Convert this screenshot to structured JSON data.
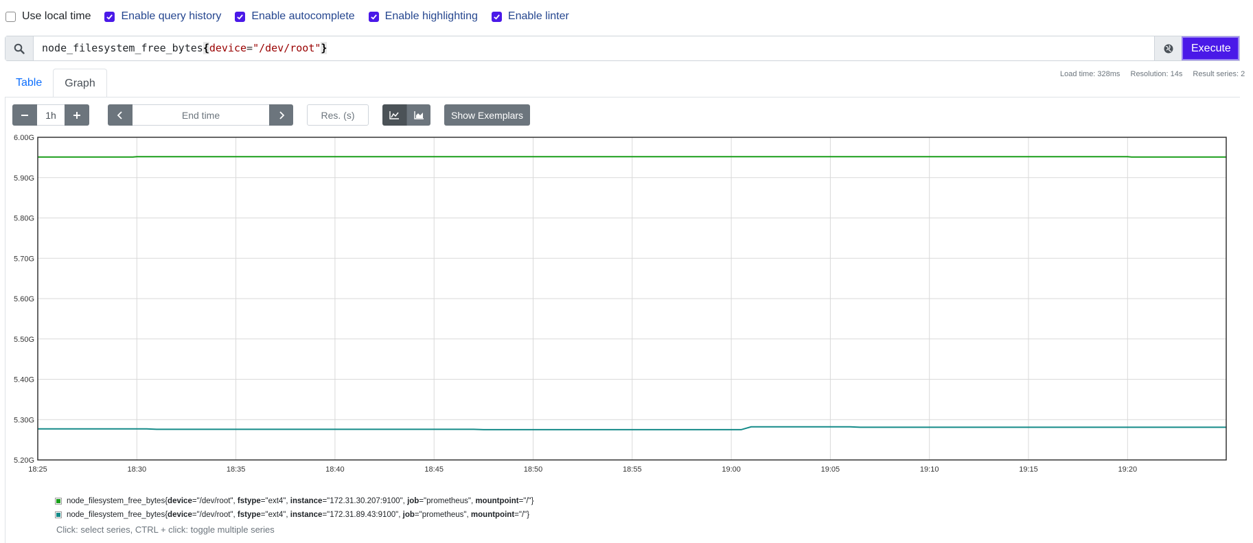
{
  "options": [
    {
      "label": "Use local time",
      "checked": false
    },
    {
      "label": "Enable query history",
      "checked": true
    },
    {
      "label": "Enable autocomplete",
      "checked": true
    },
    {
      "label": "Enable highlighting",
      "checked": true
    },
    {
      "label": "Enable linter",
      "checked": true
    }
  ],
  "query": {
    "metric": "node_filesystem_free_bytes",
    "open_brace": "{",
    "label_name": "device",
    "operator": "=",
    "label_value": "\"/dev/root\"",
    "close_brace": "}"
  },
  "execute_label": "Execute",
  "tabs": [
    {
      "label": "Table",
      "active": false
    },
    {
      "label": "Graph",
      "active": true
    }
  ],
  "stats": {
    "load_time": "Load time: 328ms",
    "resolution": "Resolution: 14s",
    "result_series": "Result series: 2"
  },
  "controls": {
    "range": "1h",
    "end_time_placeholder": "End time",
    "resolution_placeholder": "Res. (s)",
    "show_exemplars": "Show Exemplars"
  },
  "chart_data": {
    "type": "line",
    "x_ticks": [
      "18:25",
      "18:30",
      "18:35",
      "18:40",
      "18:45",
      "18:50",
      "18:55",
      "19:00",
      "19:05",
      "19:10",
      "19:15",
      "19:20"
    ],
    "y_ticks": [
      "6.00G",
      "5.90G",
      "5.80G",
      "5.70G",
      "5.60G",
      "5.50G",
      "5.40G",
      "5.30G",
      "5.20G"
    ],
    "ylim": [
      5.2,
      6.0
    ],
    "xlim_minutes": [
      0,
      60
    ],
    "grid": true,
    "series": [
      {
        "color": "#1a9e1a",
        "points": [
          [
            0,
            5.951
          ],
          [
            4.8,
            5.951
          ],
          [
            5,
            5.952
          ],
          [
            55,
            5.952
          ],
          [
            55.2,
            5.951
          ],
          [
            60,
            5.951
          ]
        ]
      },
      {
        "color": "#138a88",
        "points": [
          [
            0,
            5.277
          ],
          [
            5.5,
            5.277
          ],
          [
            6,
            5.276
          ],
          [
            22,
            5.276
          ],
          [
            22.5,
            5.275
          ],
          [
            35.5,
            5.275
          ],
          [
            36,
            5.282
          ],
          [
            41,
            5.282
          ],
          [
            41.5,
            5.281
          ],
          [
            60,
            5.281
          ]
        ]
      }
    ]
  },
  "legend": [
    {
      "color": "#1a9e1a",
      "metric": "node_filesystem_free_bytes",
      "labels": [
        {
          "k": "device",
          "v": "\"/dev/root\""
        },
        {
          "k": "fstype",
          "v": "\"ext4\""
        },
        {
          "k": "instance",
          "v": "\"172.31.30.207:9100\""
        },
        {
          "k": "job",
          "v": "\"prometheus\""
        },
        {
          "k": "mountpoint",
          "v": "\"/\""
        }
      ]
    },
    {
      "color": "#138a88",
      "metric": "node_filesystem_free_bytes",
      "labels": [
        {
          "k": "device",
          "v": "\"/dev/root\""
        },
        {
          "k": "fstype",
          "v": "\"ext4\""
        },
        {
          "k": "instance",
          "v": "\"172.31.89.43:9100\""
        },
        {
          "k": "job",
          "v": "\"prometheus\""
        },
        {
          "k": "mountpoint",
          "v": "\"/\""
        }
      ]
    }
  ],
  "hint": "Click: select series, CTRL + click: toggle multiple series",
  "colors": {
    "accent": "#4a19e8",
    "tab_link": "#0d6efd",
    "button_dark": "#6c757d"
  }
}
